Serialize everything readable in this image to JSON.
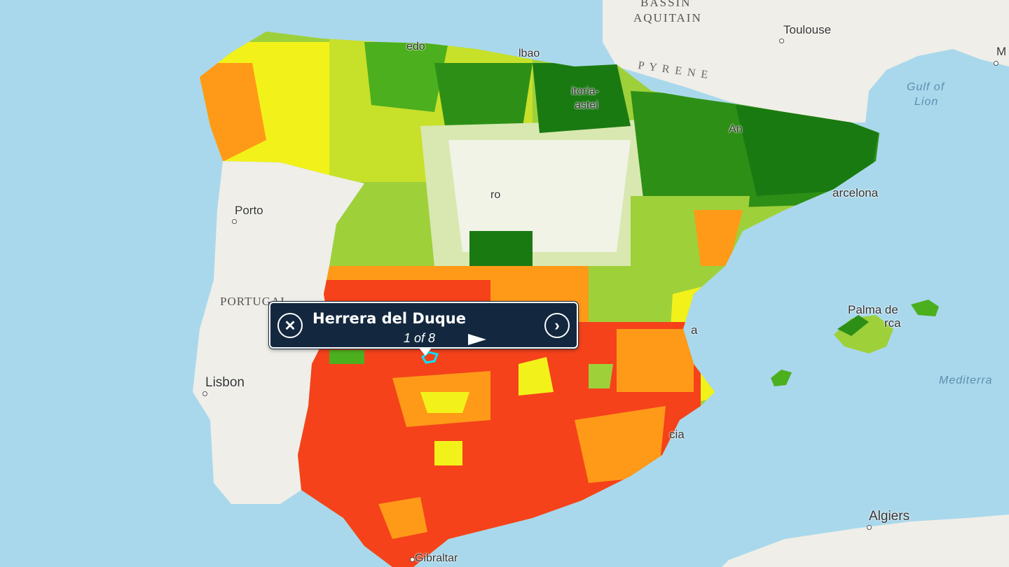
{
  "map": {
    "colors": {
      "sea": "#a9d8ec",
      "land": "#efeee8",
      "dark_green": "#1a7a12",
      "green": "#4caf1e",
      "light_green": "#9ed03a",
      "yellow": "#f2f21a",
      "orange": "#ff9a18",
      "red": "#f5421b",
      "no_data": "#f4f4f0",
      "selection": "#00e5ff"
    },
    "labels": {
      "bassin": "BASSIN",
      "aquitain": "AQUITAIN",
      "toulouse": "Toulouse",
      "m_cut": "M",
      "gulf_of": "Gulf of",
      "lion": "Lion",
      "pyrenees": "P Y R E N E",
      "bilbao_cut": "lbao",
      "oviedo_cut": "edo",
      "vitoria_cut": "itoria-",
      "gasteiz_cut": "astei",
      "barcelona_cut": "arcelona",
      "porto": "Porto",
      "portugal": "PORTUGAL",
      "lisbon": "Lisbon",
      "palma_de": "Palma de",
      "mallorca_cut": "rca",
      "mediterra": "Mediterra",
      "algiers": "Algiers",
      "gibraltar": "Gibraltar",
      "valencia_cut": "a",
      "murcia_cut": "cia",
      "an_cut": "An",
      "zaragoza_cut": "ro"
    }
  },
  "popup": {
    "title": "Herrera del Duque",
    "count": "1 of 8",
    "close_icon": "close-icon",
    "next_icon": "chevron-right-icon"
  }
}
